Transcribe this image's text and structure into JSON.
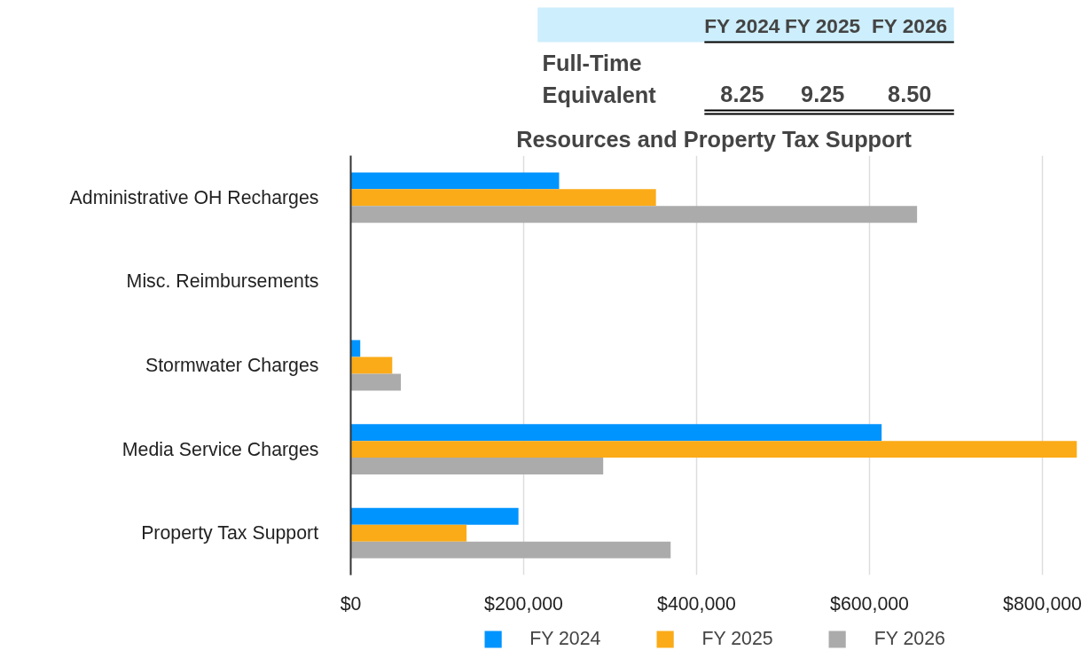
{
  "chart_data": [
    {
      "type": "other",
      "categories": [
        "FY 2024",
        "FY 2025",
        "FY 2026"
      ],
      "annotations": [
        "Full-Time Equivalent"
      ],
      "value_labels": [
        "8.25",
        "9.25",
        "8.50"
      ]
    },
    {
      "type": "bar",
      "orientation": "horizontal",
      "title": "Resources and Property Tax Support",
      "categories": [
        "Administrative OH Recharges",
        "Misc. Reimbursements",
        "Stormwater Charges",
        "Media Service Charges",
        "Property Tax Support"
      ],
      "series": [
        {
          "name": "FY 2024",
          "color": "#0094ff",
          "values": [
            241000,
            null,
            11000,
            614000,
            194000
          ]
        },
        {
          "name": "FY 2025",
          "color": "#fbab18",
          "values": [
            353000,
            null,
            48000,
            840000,
            134000
          ]
        },
        {
          "name": "FY 2026",
          "color": "#ababab",
          "values": [
            655000,
            null,
            58000,
            292000,
            370000
          ]
        }
      ],
      "xlim": [
        0,
        840000
      ],
      "xticks": [
        {
          "value": 0,
          "label": "$0"
        },
        {
          "value": 200000,
          "label": "$200,000"
        },
        {
          "value": 400000,
          "label": "$400,000"
        },
        {
          "value": 600000,
          "label": "$600,000"
        },
        {
          "value": 800000,
          "label": "$800,000"
        }
      ],
      "grid": "x",
      "legend": "bottom"
    }
  ]
}
